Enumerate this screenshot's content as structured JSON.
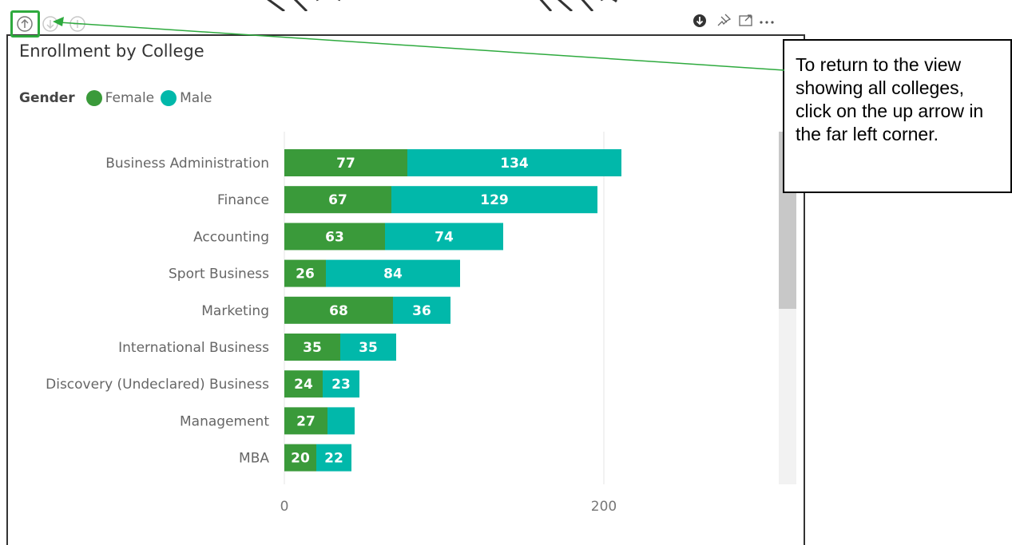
{
  "visual": {
    "title": "Enrollment by College",
    "legend": {
      "title": "Gender",
      "items": [
        {
          "label": "Female",
          "color": "#3a9a3a"
        },
        {
          "label": "Male",
          "color": "#01b8aa"
        }
      ]
    },
    "header_icons": {
      "left": [
        "drill-up-icon",
        "drill-down-icon",
        "expand-level-icon"
      ],
      "right": [
        "drill-mode-icon",
        "pin-icon",
        "focus-mode-icon",
        "more-options-icon"
      ]
    }
  },
  "callout": {
    "text": "To return to the view showing all colleges, click on the up arrow in the far left corner."
  },
  "chart_data": {
    "type": "bar",
    "orientation": "horizontal",
    "stacked": true,
    "categories": [
      "Business Administration",
      "Finance",
      "Accounting",
      "Sport Business",
      "Marketing",
      "International Business",
      "Discovery (Undeclared) Business",
      "Management",
      "MBA"
    ],
    "series": [
      {
        "name": "Female",
        "color": "#3a9a3a",
        "values": [
          77,
          67,
          63,
          26,
          68,
          35,
          24,
          27,
          20
        ]
      },
      {
        "name": "Male",
        "color": "#01b8aa",
        "values": [
          134,
          129,
          74,
          84,
          36,
          35,
          23,
          17,
          22
        ]
      }
    ],
    "value_labels": {
      "Female": [
        "77",
        "67",
        "63",
        "26",
        "68",
        "35",
        "24",
        "27",
        "20"
      ],
      "Male": [
        "134",
        "129",
        "74",
        "84",
        "36",
        "35",
        "23",
        "",
        "22"
      ]
    },
    "x_ticks": [
      0,
      200
    ],
    "xlim": [
      0,
      240
    ],
    "grid": true,
    "legend_position": "top-left"
  }
}
